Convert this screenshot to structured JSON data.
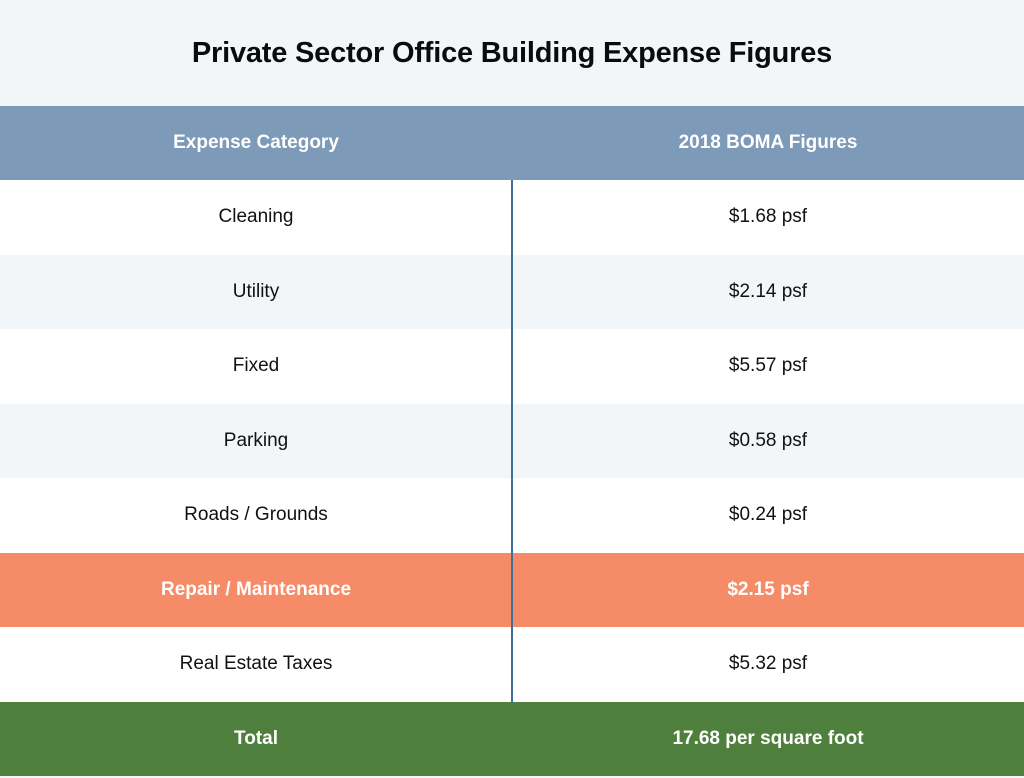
{
  "chart_data": {
    "type": "table",
    "title": "Private Sector Office Building Expense Figures",
    "columns": [
      "Expense Category",
      "2018 BOMA Figures"
    ],
    "rows": [
      {
        "category": "Cleaning",
        "value": "$1.68 psf",
        "highlight": false
      },
      {
        "category": "Utility",
        "value": "$2.14 psf",
        "highlight": false
      },
      {
        "category": "Fixed",
        "value": "$5.57 psf",
        "highlight": false
      },
      {
        "category": "Parking",
        "value": "$0.58 psf",
        "highlight": false
      },
      {
        "category": "Roads / Grounds",
        "value": "$0.24 psf",
        "highlight": false
      },
      {
        "category": "Repair / Maintenance",
        "value": "$2.15 psf",
        "highlight": true
      },
      {
        "category": "Real Estate Taxes",
        "value": "$5.32 psf",
        "highlight": false
      }
    ],
    "total": {
      "label": "Total",
      "value": "17.68 per square foot"
    }
  },
  "colors": {
    "header": "#7d9ab9",
    "highlight": "#f58c67",
    "total": "#4f7f3d",
    "alt_row": "#f3f6f9",
    "divider": "#3f6e9a"
  }
}
